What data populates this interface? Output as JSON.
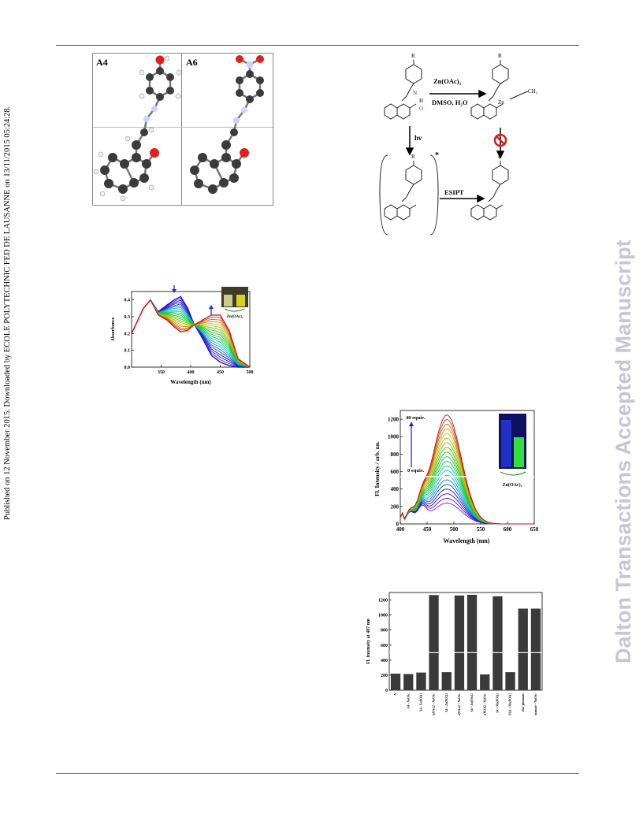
{
  "sidebar_left": "Published on 12 November 2015. Downloaded by ECOLE POLYTECHNIC FED DE LAUSANNE on 13/11/2015 05:24:28.",
  "sidebar_right": "Dalton Transactions Accepted Manuscript",
  "structures": {
    "label_a": "A4",
    "label_b": "A6"
  },
  "scheme": {
    "r_label": "R",
    "reagent1": "Zn(OAc)₂",
    "reagent2": "DMSO, H₂O",
    "hv": "hν",
    "esipt": "ESIPT",
    "star": "*",
    "ch3": "CH₃",
    "zn": "Zn",
    "oh_h": "H",
    "o": "O",
    "n": "N"
  },
  "colors": {
    "nitrogen": "#2a2acc",
    "oxygen": "#e0201a",
    "accent_arrow": "#1a1ad6",
    "prohibit": "#d71a1a"
  },
  "chart_data": [
    {
      "type": "line",
      "title": "",
      "xlabel": "Wavelength (nm)",
      "ylabel": "Absorbance",
      "xlim": [
        300,
        500
      ],
      "ylim": [
        0,
        0.45
      ],
      "xticks": [
        "350",
        "400",
        "450",
        "500"
      ],
      "yticks": [
        "0.0",
        "0.1",
        "0.2",
        "0.3",
        "0.4"
      ],
      "inset_label": "Zn(OAc)₂",
      "series_count": 20,
      "first_series": {
        "x": [
          300,
          320,
          332,
          345,
          360,
          372,
          383,
          395,
          405,
          420,
          435,
          450,
          465,
          480,
          500
        ],
        "y": [
          0.2,
          0.35,
          0.4,
          0.33,
          0.37,
          0.4,
          0.42,
          0.35,
          0.26,
          0.17,
          0.07,
          0.03,
          0.01,
          0.0,
          0.0
        ]
      },
      "last_series": {
        "x": [
          300,
          320,
          332,
          345,
          360,
          372,
          383,
          395,
          405,
          420,
          435,
          450,
          465,
          480,
          500
        ],
        "y": [
          0.2,
          0.35,
          0.4,
          0.31,
          0.28,
          0.24,
          0.21,
          0.22,
          0.25,
          0.28,
          0.31,
          0.31,
          0.22,
          0.05,
          0.0
        ]
      }
    },
    {
      "type": "line",
      "title": "",
      "xlabel": "Wavelength (nm)",
      "ylabel": "Fl. Intensity / arb. un.",
      "xlim": [
        400,
        650
      ],
      "ylim": [
        0,
        1300
      ],
      "xticks": [
        "400",
        "450",
        "500",
        "550",
        "600",
        "650"
      ],
      "yticks": [
        "0",
        "200",
        "400",
        "600",
        "800",
        "1000",
        "1200"
      ],
      "annotation_top": "40 equiv.",
      "annotation_bottom": "0 equiv.",
      "inset_label": "Zn(OAc)₂",
      "series_count": 20,
      "peak_x": 487,
      "peak_min": 240,
      "peak_max": 1250
    },
    {
      "type": "bar",
      "title": "",
      "xlabel": "",
      "ylabel": "Fl. Intensity at 487 nm",
      "ylim": [
        0,
        1300
      ],
      "yticks": [
        "0",
        "200",
        "400",
        "600",
        "800",
        "1000",
        "1200"
      ],
      "categories": [
        "A",
        "A4 + NaOAc",
        "A4 + Fe(NO3)3",
        "A4 + Zn(OAc)2 + NaOAc",
        "A4 + Zn(NO3)2",
        "A4 + Zn(OAc)2 + NaOAc",
        "A4 + Zn(OAc)2",
        "A4 + Zn(NO3)2 + NaOAc",
        "A4 + Mn(NO3)2",
        "A4 + Zn(NO3)2 + Mn(NO3)2",
        "Zinc glutamate",
        "Zinc glutamate + NaOAc"
      ],
      "values": [
        220,
        215,
        235,
        1265,
        240,
        1260,
        1270,
        210,
        1250,
        240,
        1085,
        1085
      ]
    }
  ]
}
